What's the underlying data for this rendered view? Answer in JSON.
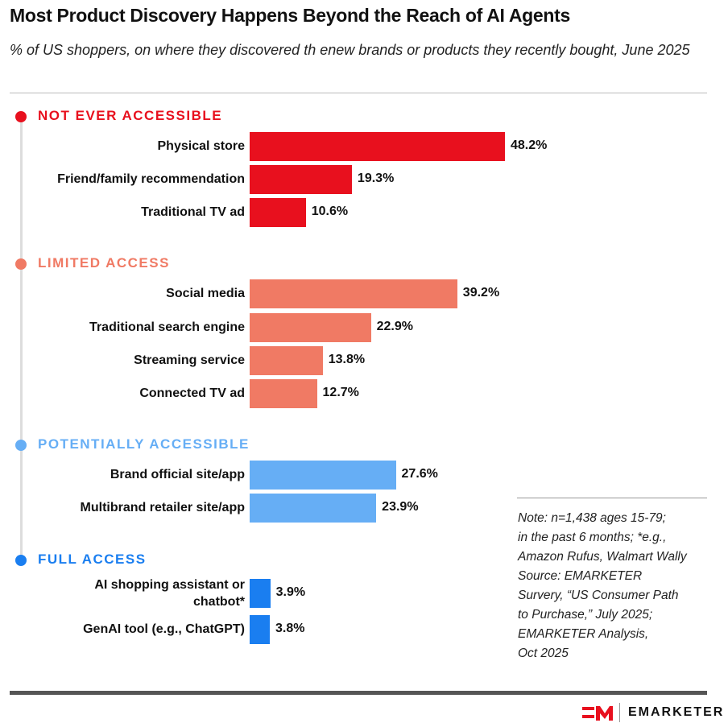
{
  "chart_data": {
    "type": "bar",
    "orientation": "horizontal",
    "title": "Most Product Discovery Happens Beyond the Reach of AI Agents",
    "subtitle": "% of US shoppers, on where they discovered th enew brands or products they recently bought, June 2025",
    "unit": "%",
    "xlim": [
      0,
      50
    ],
    "groups": [
      {
        "name": "NOT EVER ACCESSIBLE",
        "color": "#e8101e",
        "items": [
          {
            "label": "Physical store",
            "value": 48.2
          },
          {
            "label": "Friend/family recommendation",
            "value": 19.3
          },
          {
            "label": "Traditional TV ad",
            "value": 10.6
          }
        ]
      },
      {
        "name": "LIMITED ACCESS",
        "color": "#f07a64",
        "items": [
          {
            "label": "Social media",
            "value": 39.2
          },
          {
            "label": "Traditional search engine",
            "value": 22.9
          },
          {
            "label": "Streaming service",
            "value": 13.8
          },
          {
            "label": "Connected TV ad",
            "value": 12.7
          }
        ]
      },
      {
        "name": "POTENTIALLY ACCESSIBLE",
        "color": "#66aef5",
        "items": [
          {
            "label": "Brand official site/app",
            "value": 27.6
          },
          {
            "label": "Multibrand retailer site/app",
            "value": 23.9
          }
        ]
      },
      {
        "name": "FULL ACCESS",
        "color": "#1a7ef0",
        "items": [
          {
            "label": "AI shopping assistant or chatbot*",
            "value": 3.9
          },
          {
            "label": "GenAI tool (e.g., ChatGPT)",
            "value": 3.8
          }
        ]
      }
    ]
  },
  "note": "Note: n=1,438 ages 15-79;\nin the past 6 months; *e.g.,\nAmazon Rufus, Walmart Wally\nSource: EMARKETER\nSurvery, “US Consumer Path\nto Purchase,” July 2025;\nEMARKETER Analysis,\nOct 2025",
  "brand": "EMARKETER",
  "brand_color": "#e8101e"
}
